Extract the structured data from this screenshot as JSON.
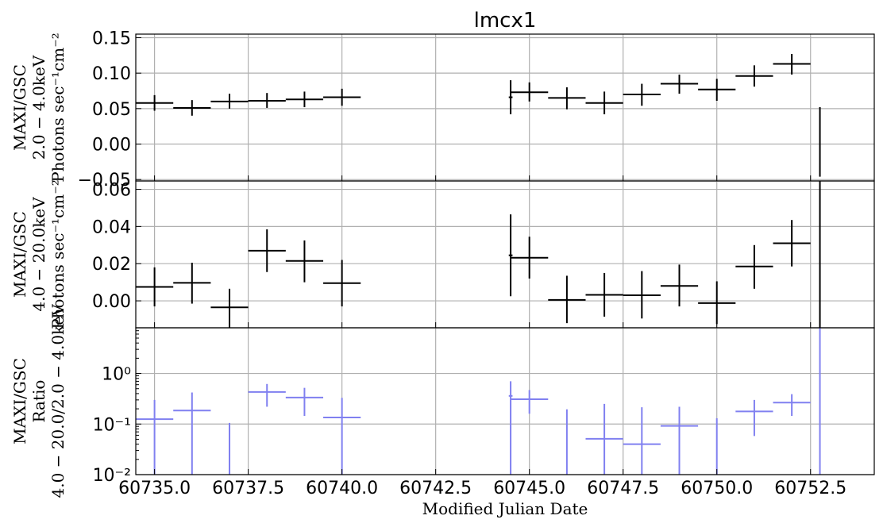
{
  "chart_data": {
    "type": "scatter",
    "title": "lmcx1",
    "xlabel": "Modified Julian Date",
    "xlim": [
      60734.5,
      60754.2
    ],
    "x_ticks": [
      60735.0,
      60737.5,
      60740.0,
      60742.5,
      60745.0,
      60747.5,
      60750.0,
      60752.5
    ],
    "x_tick_labels": [
      "60735.0",
      "60737.5",
      "60740.0",
      "60742.5",
      "60745.0",
      "60747.5",
      "60750.0",
      "60752.5"
    ],
    "grid": true,
    "panels": [
      {
        "ylabel_lines": [
          "MAXI/GSC",
          "2.0 − 4.0keV",
          "Photons sec⁻¹cm⁻²"
        ],
        "ylim": [
          -0.052,
          0.155
        ],
        "scale": "linear",
        "y_ticks": [
          -0.05,
          0.0,
          0.05,
          0.1,
          0.15
        ],
        "y_tick_labels": [
          "−0.05",
          "0.00",
          "0.05",
          "0.10",
          "0.15"
        ],
        "color": "#000000",
        "points": [
          {
            "x": 60735.0,
            "xerr": 0.5,
            "y": 0.058,
            "ylo": 0.047,
            "yhi": 0.069
          },
          {
            "x": 60736.0,
            "xerr": 0.5,
            "y": 0.051,
            "ylo": 0.04,
            "yhi": 0.062
          },
          {
            "x": 60737.0,
            "xerr": 0.5,
            "y": 0.06,
            "ylo": 0.05,
            "yhi": 0.071
          },
          {
            "x": 60738.0,
            "xerr": 0.5,
            "y": 0.061,
            "ylo": 0.051,
            "yhi": 0.072
          },
          {
            "x": 60739.0,
            "xerr": 0.5,
            "y": 0.063,
            "ylo": 0.052,
            "yhi": 0.074
          },
          {
            "x": 60740.0,
            "xerr": 0.5,
            "y": 0.066,
            "ylo": 0.054,
            "yhi": 0.078
          },
          {
            "x": 60744.5,
            "xerr": 0.05,
            "y": 0.066,
            "ylo": 0.042,
            "yhi": 0.09
          },
          {
            "x": 60745.0,
            "xerr": 0.5,
            "y": 0.073,
            "ylo": 0.06,
            "yhi": 0.087
          },
          {
            "x": 60746.0,
            "xerr": 0.5,
            "y": 0.065,
            "ylo": 0.049,
            "yhi": 0.08
          },
          {
            "x": 60747.0,
            "xerr": 0.5,
            "y": 0.058,
            "ylo": 0.042,
            "yhi": 0.074
          },
          {
            "x": 60748.0,
            "xerr": 0.5,
            "y": 0.07,
            "ylo": 0.054,
            "yhi": 0.085
          },
          {
            "x": 60749.0,
            "xerr": 0.5,
            "y": 0.085,
            "ylo": 0.071,
            "yhi": 0.098
          },
          {
            "x": 60750.0,
            "xerr": 0.5,
            "y": 0.077,
            "ylo": 0.061,
            "yhi": 0.092
          },
          {
            "x": 60751.0,
            "xerr": 0.5,
            "y": 0.096,
            "ylo": 0.081,
            "yhi": 0.111
          },
          {
            "x": 60752.0,
            "xerr": 0.5,
            "y": 0.113,
            "ylo": 0.098,
            "yhi": 0.127
          },
          {
            "x": 60752.75,
            "xerr": 0.0,
            "y": 0.003,
            "ylo": -0.046,
            "yhi": 0.052
          }
        ]
      },
      {
        "ylabel_lines": [
          "MAXI/GSC",
          "4.0 − 20.0keV",
          "Photons sec⁻¹cm⁻²"
        ],
        "ylim": [
          -0.0145,
          0.0645
        ],
        "scale": "linear",
        "y_ticks": [
          0.0,
          0.02,
          0.04,
          0.06
        ],
        "y_tick_labels": [
          "0.00",
          "0.02",
          "0.04",
          "0.06"
        ],
        "color": "#000000",
        "points": [
          {
            "x": 60735.0,
            "xerr": 0.5,
            "y": 0.0075,
            "ylo": -0.003,
            "yhi": 0.018
          },
          {
            "x": 60736.0,
            "xerr": 0.5,
            "y": 0.0097,
            "ylo": -0.0015,
            "yhi": 0.0205
          },
          {
            "x": 60737.0,
            "xerr": 0.5,
            "y": -0.0035,
            "ylo": -0.0145,
            "yhi": 0.0065
          },
          {
            "x": 60738.0,
            "xerr": 0.5,
            "y": 0.027,
            "ylo": 0.0155,
            "yhi": 0.0385
          },
          {
            "x": 60739.0,
            "xerr": 0.5,
            "y": 0.0215,
            "ylo": 0.01,
            "yhi": 0.0325
          },
          {
            "x": 60740.0,
            "xerr": 0.5,
            "y": 0.0095,
            "ylo": -0.003,
            "yhi": 0.022
          },
          {
            "x": 60744.5,
            "xerr": 0.05,
            "y": 0.0245,
            "ylo": 0.0025,
            "yhi": 0.0465
          },
          {
            "x": 60745.0,
            "xerr": 0.5,
            "y": 0.0232,
            "ylo": 0.012,
            "yhi": 0.0345
          },
          {
            "x": 60746.0,
            "xerr": 0.5,
            "y": 0.0005,
            "ylo": -0.012,
            "yhi": 0.0135
          },
          {
            "x": 60747.0,
            "xerr": 0.5,
            "y": 0.0032,
            "ylo": -0.0085,
            "yhi": 0.015
          },
          {
            "x": 60748.0,
            "xerr": 0.5,
            "y": 0.003,
            "ylo": -0.0095,
            "yhi": 0.016
          },
          {
            "x": 60749.0,
            "xerr": 0.5,
            "y": 0.008,
            "ylo": -0.003,
            "yhi": 0.0195
          },
          {
            "x": 60750.0,
            "xerr": 0.5,
            "y": -0.0012,
            "ylo": -0.0125,
            "yhi": 0.0105
          },
          {
            "x": 60751.0,
            "xerr": 0.5,
            "y": 0.0185,
            "ylo": 0.0065,
            "yhi": 0.03
          },
          {
            "x": 60752.0,
            "xerr": 0.5,
            "y": 0.031,
            "ylo": 0.0185,
            "yhi": 0.0435
          },
          {
            "x": 60752.75,
            "xerr": 0.0,
            "y": 0.024,
            "ylo": -0.0145,
            "yhi": 0.0645
          }
        ]
      },
      {
        "ylabel_lines": [
          "MAXI/GSC",
          "Ratio",
          "4.0 − 20.0/2.0 − 4.0keV"
        ],
        "ylim": [
          0.01,
          8.0
        ],
        "scale": "log",
        "y_ticks": [
          0.01,
          0.1,
          1.0
        ],
        "y_tick_labels": [
          "10⁻²",
          "10⁻¹",
          "10⁰"
        ],
        "color": "#8080f0",
        "points": [
          {
            "x": 60735.0,
            "xerr": 0.5,
            "y": 0.125,
            "ylo": 0.01,
            "yhi": 0.3
          },
          {
            "x": 60736.0,
            "xerr": 0.5,
            "y": 0.185,
            "ylo": 0.01,
            "yhi": 0.42
          },
          {
            "x": 60737.0,
            "xerr": 0.0,
            "y": 0.01,
            "ylo": 0.01,
            "yhi": 0.105
          },
          {
            "x": 60738.0,
            "xerr": 0.5,
            "y": 0.43,
            "ylo": 0.22,
            "yhi": 0.62
          },
          {
            "x": 60739.0,
            "xerr": 0.5,
            "y": 0.335,
            "ylo": 0.145,
            "yhi": 0.52
          },
          {
            "x": 60740.0,
            "xerr": 0.5,
            "y": 0.135,
            "ylo": 0.01,
            "yhi": 0.33
          },
          {
            "x": 60744.5,
            "xerr": 0.05,
            "y": 0.36,
            "ylo": 0.01,
            "yhi": 0.7
          },
          {
            "x": 60745.0,
            "xerr": 0.5,
            "y": 0.31,
            "ylo": 0.16,
            "yhi": 0.47
          },
          {
            "x": 60746.0,
            "xerr": 0.0,
            "y": 0.01,
            "ylo": 0.01,
            "yhi": 0.195
          },
          {
            "x": 60747.0,
            "xerr": 0.5,
            "y": 0.051,
            "ylo": 0.01,
            "yhi": 0.25
          },
          {
            "x": 60748.0,
            "xerr": 0.5,
            "y": 0.04,
            "ylo": 0.01,
            "yhi": 0.215
          },
          {
            "x": 60749.0,
            "xerr": 0.5,
            "y": 0.092,
            "ylo": 0.01,
            "yhi": 0.22
          },
          {
            "x": 60750.0,
            "xerr": 0.0,
            "y": 0.01,
            "ylo": 0.01,
            "yhi": 0.13
          },
          {
            "x": 60751.0,
            "xerr": 0.5,
            "y": 0.178,
            "ylo": 0.058,
            "yhi": 0.3
          },
          {
            "x": 60752.0,
            "xerr": 0.5,
            "y": 0.265,
            "ylo": 0.145,
            "yhi": 0.39
          },
          {
            "x": 60752.75,
            "xerr": 0.0,
            "y": 0.5,
            "ylo": 0.01,
            "yhi": 8.0
          }
        ]
      }
    ]
  }
}
